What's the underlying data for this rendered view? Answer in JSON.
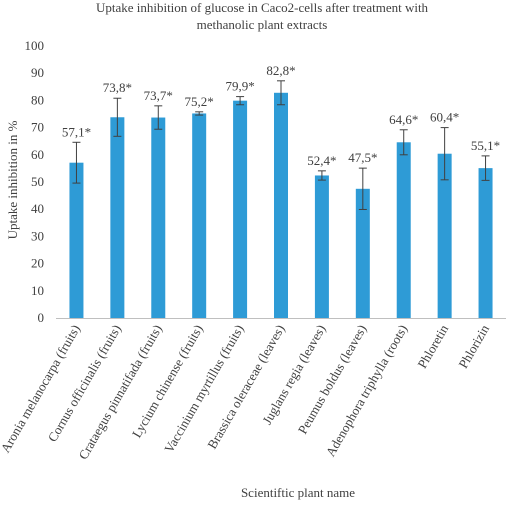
{
  "chart_data": {
    "type": "bar",
    "title_lines": [
      "Uptake inhibition of glucose in Caco2-cells after treatment with",
      "methanolic plant extracts"
    ],
    "xlabel": "Scientiftic plant name",
    "ylabel": "Uptake inhibition in %",
    "ylim": [
      0,
      100
    ],
    "yticks": [
      0,
      10,
      20,
      30,
      40,
      50,
      60,
      70,
      80,
      90,
      100
    ],
    "grid": false,
    "legend": "none",
    "categories": [
      "Aronia melanocarpa (fruits)",
      "Cornus officinalis (fruits)",
      "Crataegus pinnatifada (fruits)",
      "Lycium chinense (fruits)",
      "Vaccinium myrtillus (fruits)",
      "Brassica oleraceae (leaves)",
      "Juglans regia (leaves)",
      "Peumus boldus (leaves)",
      "Adenophora triphylla (roots)",
      "Phloretin",
      "Phlorizin"
    ],
    "values": [
      57.1,
      73.8,
      73.7,
      75.2,
      79.9,
      82.8,
      52.4,
      47.5,
      64.6,
      60.4,
      55.1
    ],
    "errors": [
      7.5,
      7.0,
      4.3,
      0.6,
      1.5,
      4.4,
      1.7,
      7.6,
      4.6,
      9.6,
      4.5
    ],
    "data_labels": [
      "57,1*",
      "73,8*",
      "73,7*",
      "75,2*",
      "79,9*",
      "82,8*",
      "52,4*",
      "47,5*",
      "64,6*",
      "60,4*",
      "55,1*"
    ],
    "bar_color": "#2e9bd6",
    "axis_color": "#bfbfbf",
    "text_color": "#404040"
  }
}
